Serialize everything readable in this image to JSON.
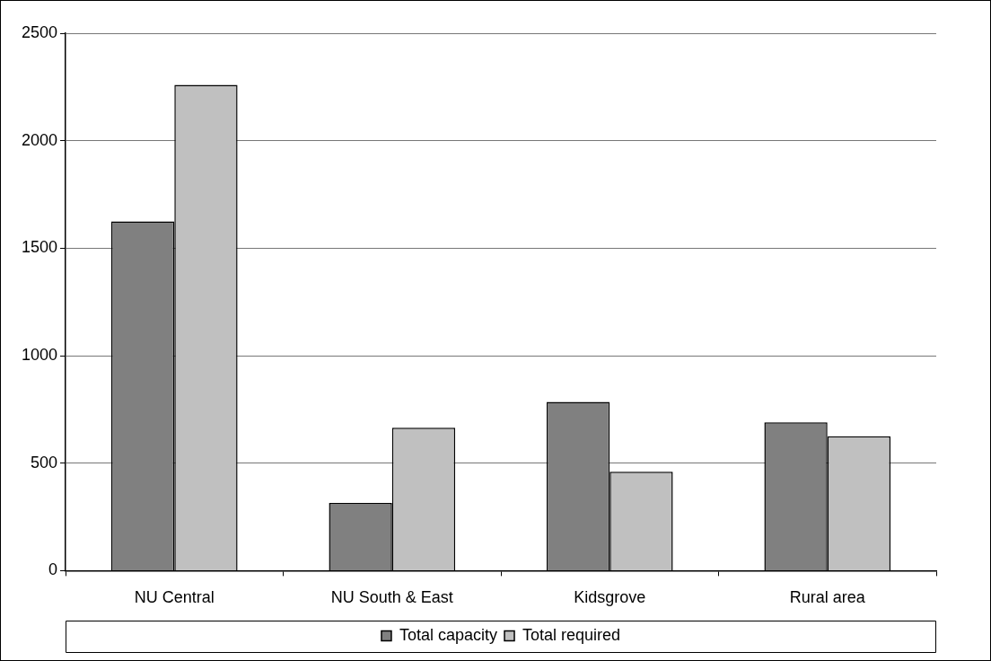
{
  "chart_data": {
    "type": "bar",
    "categories": [
      "NU Central",
      "NU South & East",
      "Kidsgrove",
      "Rural area"
    ],
    "series": [
      {
        "name": "Total capacity",
        "color": "#808080",
        "values": [
          1625,
          315,
          785,
          690
        ]
      },
      {
        "name": "Total required",
        "color": "#c0c0c0",
        "values": [
          2260,
          665,
          460,
          625
        ]
      }
    ],
    "ylim": [
      0,
      2500
    ],
    "yticks": [
      0,
      500,
      1000,
      1500,
      2000,
      2500
    ],
    "grid": "y",
    "legend": "bottom"
  }
}
